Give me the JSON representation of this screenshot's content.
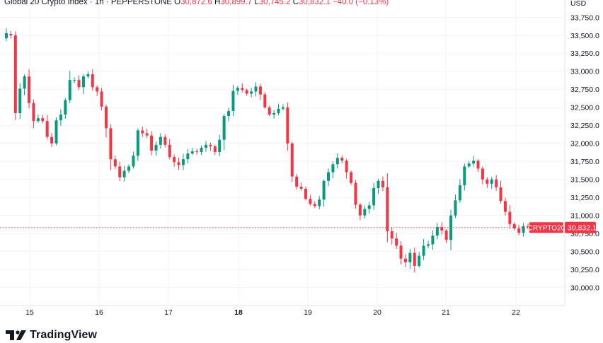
{
  "header": {
    "symbol": "Global 20 Crypto Index · 1h · PEPPERSTONE",
    "o_label": "O",
    "o_value": "30,872.6",
    "h_label": "H",
    "h_value": "30,899.7",
    "l_label": "L",
    "l_value": "30,745.2",
    "c_label": "C",
    "c_value": "30,832.1",
    "change": "−40.0 (−0.13%)"
  },
  "axis": {
    "currency": "USD"
  },
  "price_tag": {
    "symbol": "CRYPTO20",
    "value": "30,832.1"
  },
  "branding": {
    "name": "TradingView"
  },
  "colors": {
    "up": "#089981",
    "down": "#f23645",
    "grid": "#f0f3fa",
    "text": "#131722"
  },
  "chart_data": {
    "type": "candlestick",
    "title": "Global 20 Crypto Index · 1h · PEPPERSTONE",
    "ylabel": "USD",
    "ylim": [
      29800,
      33950
    ],
    "y_ticks": [
      30000,
      30250,
      30500,
      30750,
      31000,
      31250,
      31500,
      31750,
      32000,
      32250,
      32500,
      32750,
      33000,
      33250,
      33500,
      33750
    ],
    "y_tick_labels": [
      "30,000.0",
      "30,250.0",
      "30,500.0",
      "30,750.0",
      "31,000.0",
      "31,250.0",
      "31,500.0",
      "31,750.0",
      "32,000.0",
      "32,250.0",
      "32,500.0",
      "32,750.0",
      "33,000.0",
      "33,250.0",
      "33,500.0",
      "33,750.0"
    ],
    "x_ticks": [
      "15",
      "16",
      "17",
      "18",
      "19",
      "20",
      "21",
      "22"
    ],
    "bold_x_ticks": [
      "18"
    ],
    "last_price": 30832.1,
    "grid": true,
    "close_path": [
      [
        0,
        33520
      ],
      [
        1,
        33500
      ],
      [
        2,
        32420
      ],
      [
        3,
        32760
      ],
      [
        4,
        32930
      ],
      [
        5,
        32560
      ],
      [
        6,
        32310
      ],
      [
        7,
        32350
      ],
      [
        8,
        32310
      ],
      [
        9,
        32090
      ],
      [
        10,
        32000
      ],
      [
        11,
        32320
      ],
      [
        12,
        32400
      ],
      [
        13,
        32600
      ],
      [
        14,
        32880
      ],
      [
        15,
        32880
      ],
      [
        16,
        32780
      ],
      [
        17,
        32930
      ],
      [
        18,
        32960
      ],
      [
        19,
        32780
      ],
      [
        20,
        32720
      ],
      [
        21,
        32510
      ],
      [
        22,
        32210
      ],
      [
        23,
        31780
      ],
      [
        24,
        31680
      ],
      [
        25,
        31530
      ],
      [
        26,
        31620
      ],
      [
        27,
        31680
      ],
      [
        28,
        31830
      ],
      [
        29,
        32180
      ],
      [
        30,
        32140
      ],
      [
        31,
        32110
      ],
      [
        32,
        31900
      ],
      [
        33,
        31980
      ],
      [
        34,
        32090
      ],
      [
        35,
        31980
      ],
      [
        36,
        31810
      ],
      [
        37,
        31740
      ],
      [
        38,
        31700
      ],
      [
        39,
        31780
      ],
      [
        40,
        31860
      ],
      [
        41,
        31890
      ],
      [
        42,
        31880
      ],
      [
        43,
        31940
      ],
      [
        44,
        31980
      ],
      [
        45,
        31960
      ],
      [
        46,
        31880
      ],
      [
        47,
        32050
      ],
      [
        48,
        32380
      ],
      [
        49,
        32450
      ],
      [
        50,
        32730
      ],
      [
        51,
        32770
      ],
      [
        52,
        32740
      ],
      [
        53,
        32690
      ],
      [
        54,
        32720
      ],
      [
        55,
        32790
      ],
      [
        56,
        32680
      ],
      [
        57,
        32500
      ],
      [
        58,
        32400
      ],
      [
        59,
        32420
      ],
      [
        60,
        32480
      ],
      [
        61,
        32500
      ],
      [
        62,
        32000
      ],
      [
        63,
        31540
      ],
      [
        64,
        31400
      ],
      [
        65,
        31370
      ],
      [
        66,
        31230
      ],
      [
        67,
        31160
      ],
      [
        68,
        31130
      ],
      [
        69,
        31220
      ],
      [
        70,
        31480
      ],
      [
        71,
        31600
      ],
      [
        72,
        31710
      ],
      [
        73,
        31800
      ],
      [
        74,
        31760
      ],
      [
        75,
        31600
      ],
      [
        76,
        31450
      ],
      [
        77,
        31150
      ],
      [
        78,
        31000
      ],
      [
        79,
        31090
      ],
      [
        80,
        31140
      ],
      [
        81,
        31380
      ],
      [
        82,
        31480
      ],
      [
        83,
        31390
      ],
      [
        84,
        30780
      ],
      [
        85,
        30680
      ],
      [
        86,
        30580
      ],
      [
        87,
        30400
      ],
      [
        88,
        30350
      ],
      [
        89,
        30480
      ],
      [
        90,
        30300
      ],
      [
        91,
        30440
      ],
      [
        92,
        30580
      ],
      [
        93,
        30600
      ],
      [
        94,
        30720
      ],
      [
        95,
        30840
      ],
      [
        96,
        30790
      ],
      [
        97,
        30660
      ],
      [
        98,
        31000
      ],
      [
        99,
        31210
      ],
      [
        100,
        31420
      ],
      [
        101,
        31680
      ],
      [
        102,
        31720
      ],
      [
        103,
        31760
      ],
      [
        104,
        31650
      ],
      [
        105,
        31500
      ],
      [
        106,
        31440
      ],
      [
        107,
        31500
      ],
      [
        108,
        31390
      ],
      [
        109,
        31200
      ],
      [
        110,
        31050
      ],
      [
        111,
        30880
      ],
      [
        112,
        30820
      ],
      [
        113,
        30760
      ],
      [
        114,
        30850
      ],
      [
        115,
        30830
      ]
    ]
  }
}
